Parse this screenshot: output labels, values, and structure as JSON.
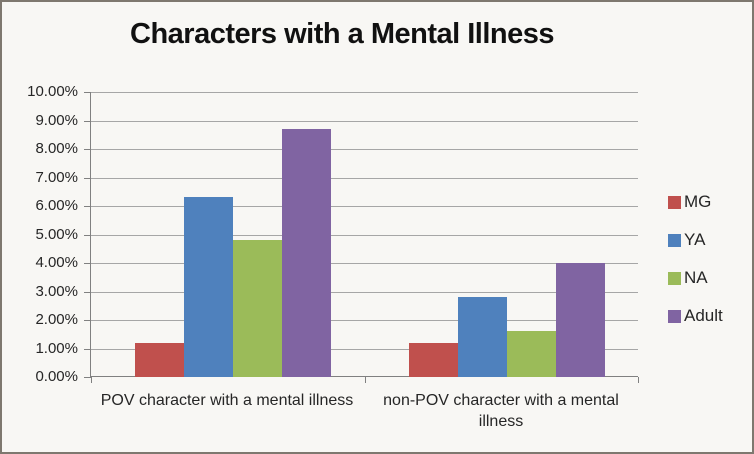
{
  "title": "Characters with a Mental Illness",
  "chart_data": {
    "type": "bar",
    "title": "Characters with a Mental Illness",
    "categories": [
      "POV character with a mental illness",
      "non-POV character with a mental illness"
    ],
    "series": [
      {
        "name": "MG",
        "color": "#C0504D",
        "values": [
          1.2,
          1.2
        ]
      },
      {
        "name": "YA",
        "color": "#4F81BD",
        "values": [
          6.3,
          2.8
        ]
      },
      {
        "name": "NA",
        "color": "#9BBB59",
        "values": [
          4.8,
          1.6
        ]
      },
      {
        "name": "Adult",
        "color": "#8064A2",
        "values": [
          8.7,
          4.0
        ]
      }
    ],
    "xlabel": "",
    "ylabel": "",
    "ylim": [
      0,
      10
    ],
    "y_tick_step": 1,
    "y_ticks": [
      "10.00%",
      "9.00%",
      "8.00%",
      "7.00%",
      "6.00%",
      "5.00%",
      "4.00%",
      "3.00%",
      "2.00%",
      "1.00%",
      "0.00%"
    ],
    "grid": "horizontal",
    "legend_position": "right"
  },
  "colors": {
    "background": "#f8f7f4",
    "frame_border": "#7e786f",
    "gridline": "#a6a6a6",
    "axis": "#808080",
    "text": "#262626"
  }
}
